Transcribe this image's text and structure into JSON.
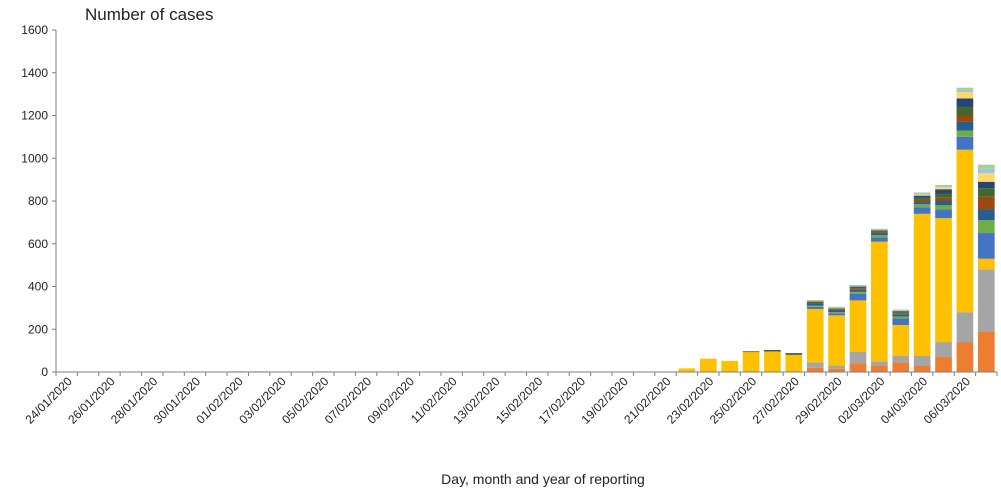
{
  "chart_data": {
    "type": "bar",
    "stacked": true,
    "title": "Number of cases",
    "xlabel": "Day, month and year of reporting",
    "ylabel": "",
    "ylim": [
      0,
      1600
    ],
    "yticks": [
      0,
      200,
      400,
      600,
      800,
      1000,
      1200,
      1400,
      1600
    ],
    "grid": false,
    "legend": "none",
    "categories": [
      "24/01/2020",
      "25/01/2020",
      "26/01/2020",
      "27/01/2020",
      "28/01/2020",
      "29/01/2020",
      "30/01/2020",
      "31/01/2020",
      "01/02/2020",
      "02/02/2020",
      "03/02/2020",
      "04/02/2020",
      "05/02/2020",
      "06/02/2020",
      "07/02/2020",
      "08/02/2020",
      "09/02/2020",
      "10/02/2020",
      "11/02/2020",
      "12/02/2020",
      "13/02/2020",
      "14/02/2020",
      "15/02/2020",
      "16/02/2020",
      "17/02/2020",
      "18/02/2020",
      "19/02/2020",
      "20/02/2020",
      "21/02/2020",
      "22/02/2020",
      "23/02/2020",
      "24/02/2020",
      "25/02/2020",
      "26/02/2020",
      "27/02/2020",
      "28/02/2020",
      "29/02/2020",
      "01/03/2020",
      "02/03/2020",
      "03/03/2020",
      "04/03/2020",
      "05/03/2020",
      "06/03/2020",
      "07/03/2020"
    ],
    "tick_labels": [
      "24/01/2020",
      "26/01/2020",
      "28/01/2020",
      "30/01/2020",
      "01/02/2020",
      "03/02/2020",
      "05/02/2020",
      "07/02/2020",
      "09/02/2020",
      "11/02/2020",
      "13/02/2020",
      "15/02/2020",
      "17/02/2020",
      "19/02/2020",
      "21/02/2020",
      "23/02/2020",
      "25/02/2020",
      "27/02/2020",
      "29/02/2020",
      "02/03/2020",
      "04/03/2020",
      "06/03/2020"
    ],
    "series": [
      {
        "color": "#ED7D31",
        "values": [
          0,
          0,
          0,
          0,
          0,
          0,
          0,
          0,
          0,
          0,
          0,
          0,
          3,
          0,
          0,
          0,
          0,
          0,
          0,
          0,
          0,
          0,
          0,
          0,
          0,
          0,
          0,
          0,
          0,
          0,
          0,
          0,
          0,
          0,
          0,
          20,
          15,
          40,
          30,
          45,
          30,
          70,
          140,
          190
        ]
      },
      {
        "color": "#A5A5A5",
        "values": [
          0,
          0,
          0,
          0,
          0,
          0,
          0,
          0,
          0,
          0,
          0,
          0,
          0,
          0,
          0,
          0,
          3,
          0,
          0,
          0,
          0,
          0,
          0,
          0,
          0,
          0,
          0,
          0,
          0,
          0,
          0,
          0,
          0,
          0,
          0,
          25,
          15,
          55,
          20,
          30,
          45,
          70,
          140,
          290
        ]
      },
      {
        "color": "#FFC000",
        "values": [
          0,
          0,
          0,
          0,
          0,
          0,
          0,
          0,
          0,
          0,
          0,
          0,
          0,
          0,
          0,
          0,
          0,
          0,
          0,
          0,
          0,
          0,
          0,
          0,
          0,
          0,
          0,
          0,
          0,
          17,
          62,
          52,
          95,
          98,
          80,
          250,
          235,
          240,
          560,
          145,
          665,
          580,
          760,
          50
        ]
      },
      {
        "color": "#4472C4",
        "values": [
          0,
          0,
          0,
          0,
          0,
          0,
          0,
          0,
          3,
          0,
          0,
          0,
          0,
          0,
          0,
          0,
          0,
          0,
          0,
          0,
          0,
          0,
          0,
          0,
          0,
          0,
          0,
          0,
          0,
          0,
          0,
          0,
          0,
          0,
          0,
          10,
          10,
          30,
          20,
          30,
          30,
          40,
          60,
          120
        ]
      },
      {
        "color": "#70AD47",
        "values": [
          0,
          0,
          0,
          0,
          0,
          0,
          0,
          0,
          0,
          3,
          0,
          0,
          0,
          0,
          0,
          0,
          0,
          0,
          0,
          0,
          0,
          0,
          0,
          0,
          0,
          0,
          0,
          0,
          0,
          0,
          0,
          0,
          0,
          0,
          0,
          5,
          5,
          10,
          10,
          10,
          15,
          20,
          30,
          60
        ]
      },
      {
        "color": "#255E91",
        "values": [
          0,
          0,
          0,
          0,
          0,
          0,
          0,
          0,
          0,
          0,
          0,
          0,
          0,
          0,
          0,
          0,
          0,
          0,
          0,
          0,
          0,
          0,
          0,
          0,
          0,
          0,
          0,
          0,
          0,
          0,
          0,
          0,
          0,
          0,
          0,
          10,
          8,
          10,
          10,
          10,
          10,
          20,
          40,
          50
        ]
      },
      {
        "color": "#9E480E",
        "values": [
          0,
          0,
          0,
          0,
          0,
          0,
          0,
          0,
          0,
          0,
          0,
          0,
          0,
          0,
          0,
          0,
          0,
          0,
          0,
          0,
          0,
          0,
          0,
          0,
          0,
          0,
          0,
          0,
          0,
          0,
          0,
          0,
          0,
          0,
          0,
          3,
          3,
          5,
          3,
          5,
          10,
          15,
          30,
          60
        ]
      },
      {
        "color": "#43682B",
        "values": [
          0,
          0,
          0,
          0,
          0,
          0,
          0,
          0,
          0,
          0,
          0,
          0,
          0,
          0,
          0,
          0,
          0,
          0,
          0,
          0,
          0,
          0,
          0,
          0,
          0,
          0,
          0,
          0,
          0,
          0,
          0,
          0,
          2,
          2,
          5,
          5,
          5,
          5,
          5,
          5,
          10,
          20,
          40,
          40
        ]
      },
      {
        "color": "#264478",
        "values": [
          0,
          0,
          0,
          0,
          0,
          0,
          0,
          0,
          0,
          0,
          0,
          0,
          0,
          0,
          0,
          0,
          0,
          0,
          0,
          0,
          0,
          0,
          0,
          0,
          0,
          0,
          0,
          0,
          0,
          0,
          0,
          0,
          0,
          3,
          3,
          3,
          3,
          5,
          5,
          5,
          10,
          20,
          40,
          30
        ]
      },
      {
        "color": "#FFD966",
        "values": [
          0,
          0,
          0,
          0,
          0,
          0,
          0,
          0,
          0,
          0,
          0,
          0,
          0,
          0,
          0,
          0,
          0,
          0,
          0,
          0,
          0,
          0,
          0,
          0,
          0,
          0,
          0,
          0,
          0,
          0,
          0,
          0,
          0,
          0,
          0,
          2,
          2,
          3,
          3,
          3,
          5,
          10,
          30,
          40
        ]
      },
      {
        "color": "#9DC3E6",
        "values": [
          0,
          0,
          0,
          0,
          0,
          0,
          0,
          0,
          0,
          0,
          0,
          0,
          0,
          0,
          0,
          0,
          0,
          0,
          0,
          0,
          0,
          0,
          0,
          0,
          0,
          0,
          0,
          0,
          0,
          0,
          0,
          0,
          0,
          0,
          0,
          2,
          2,
          2,
          2,
          2,
          5,
          5,
          10,
          20
        ]
      },
      {
        "color": "#A9D18E",
        "values": [
          0,
          0,
          0,
          0,
          0,
          0,
          0,
          0,
          0,
          0,
          0,
          0,
          0,
          0,
          0,
          0,
          0,
          0,
          0,
          0,
          0,
          0,
          0,
          0,
          0,
          0,
          0,
          0,
          0,
          0,
          0,
          0,
          0,
          0,
          0,
          2,
          2,
          2,
          2,
          2,
          5,
          5,
          10,
          20
        ]
      }
    ]
  }
}
